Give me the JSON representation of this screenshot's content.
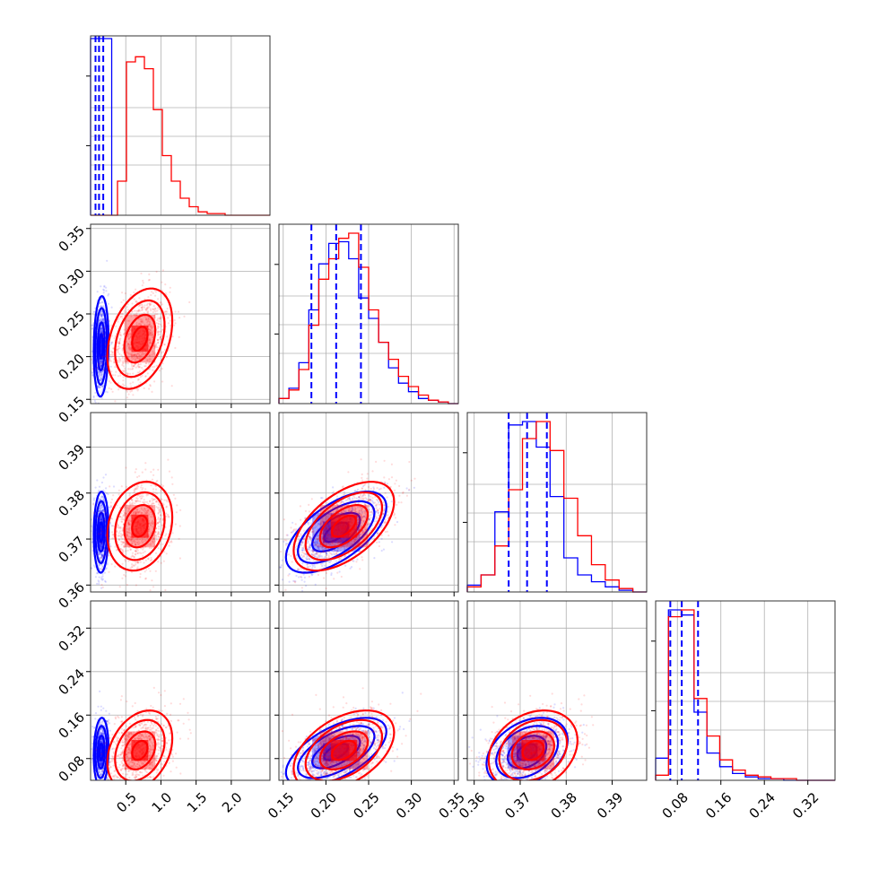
{
  "chart_data": {
    "type": "corner",
    "grid": true,
    "colors": {
      "series_a": "#0000ff",
      "series_b": "#ff0000"
    },
    "params": [
      {
        "range": [
          0.0,
          2.55
        ],
        "ticks": [
          0.5,
          1.0,
          1.5,
          2.0
        ],
        "tick_labels": [
          "0.5",
          "1.0",
          "1.5",
          "2.0"
        ]
      },
      {
        "range": [
          0.145,
          0.355
        ],
        "ticks": [
          0.15,
          0.2,
          0.25,
          0.3,
          0.35
        ],
        "tick_labels": [
          "0.15",
          "0.20",
          "0.25",
          "0.30",
          "0.35"
        ]
      },
      {
        "range": [
          0.3585,
          0.3975
        ],
        "ticks": [
          0.36,
          0.37,
          0.38,
          0.39
        ],
        "tick_labels": [
          "0.36",
          "0.37",
          "0.38",
          "0.39"
        ]
      },
      {
        "range": [
          0.04,
          0.37
        ],
        "ticks": [
          0.08,
          0.16,
          0.24,
          0.32
        ],
        "tick_labels": [
          "0.08",
          "0.16",
          "0.24",
          "0.32"
        ]
      }
    ],
    "series": [
      {
        "key": "series_a",
        "mean": [
          0.15,
          0.212,
          0.3715,
          0.092
        ],
        "std": [
          0.05,
          0.028,
          0.0042,
          0.03
        ],
        "corr": {
          "1-0": 0.1,
          "2-0": 0.05,
          "2-1": 0.62,
          "3-0": 0.1,
          "3-1": 0.6,
          "3-2": 0.35
        },
        "quantiles": [
          [
            0.07,
            0.12,
            0.18
          ],
          [
            0.183,
            0.212,
            0.241
          ],
          [
            0.3675,
            0.3715,
            0.3758
          ],
          [
            0.067,
            0.088,
            0.118
          ]
        ],
        "hist_heights": [
          [
            1.0
          ],
          [
            0.03,
            0.09,
            0.24,
            0.55,
            0.82,
            0.94,
            0.95,
            0.85,
            0.62,
            0.5,
            0.36,
            0.21,
            0.12,
            0.07,
            0.03,
            0.02,
            0.01,
            0.0
          ],
          [
            0.04,
            0.1,
            0.47,
            0.98,
            1.0,
            0.85,
            0.56,
            0.2,
            0.1,
            0.06,
            0.03,
            0.01,
            0.0
          ],
          [
            0.13,
            1.0,
            0.97,
            0.4,
            0.16,
            0.08,
            0.04,
            0.02,
            0.01,
            0.01,
            0.0,
            0.0,
            0.0,
            0.0
          ]
        ]
      },
      {
        "key": "series_b",
        "mean": [
          0.7,
          0.221,
          0.3728,
          0.095
        ],
        "std": [
          0.22,
          0.028,
          0.0046,
          0.035
        ],
        "corr": {
          "1-0": 0.35,
          "2-0": 0.2,
          "2-1": 0.55,
          "3-0": 0.3,
          "3-1": 0.45,
          "3-2": 0.25
        },
        "quantiles": [
          [
            0.5,
            0.7,
            0.95
          ],
          [
            0.19,
            0.22,
            0.25
          ],
          [
            0.368,
            0.3725,
            0.377
          ],
          [
            0.07,
            0.09,
            0.122
          ]
        ],
        "hist_heights": [
          [
            0.0,
            0.0,
            0.0,
            0.2,
            0.9,
            0.93,
            0.86,
            0.62,
            0.35,
            0.2,
            0.1,
            0.05,
            0.02,
            0.01,
            0.01,
            0.0,
            0.0,
            0.0,
            0.0,
            0.0
          ],
          [
            0.03,
            0.08,
            0.2,
            0.46,
            0.73,
            0.85,
            0.97,
            1.0,
            0.8,
            0.55,
            0.36,
            0.26,
            0.16,
            0.1,
            0.05,
            0.02,
            0.01,
            0.0
          ],
          [
            0.03,
            0.1,
            0.27,
            0.6,
            0.9,
            1.0,
            0.83,
            0.55,
            0.33,
            0.16,
            0.07,
            0.02,
            0.0
          ],
          [
            0.03,
            0.96,
            1.0,
            0.48,
            0.26,
            0.12,
            0.06,
            0.03,
            0.02,
            0.01,
            0.01,
            0.0,
            0.0,
            0.0
          ]
        ]
      }
    ]
  }
}
